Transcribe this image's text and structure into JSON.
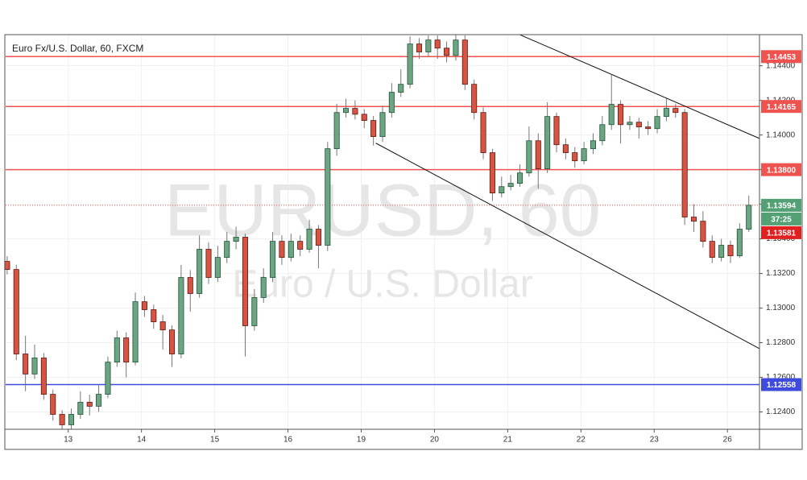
{
  "chart_data": {
    "type": "candlestick",
    "title": "Euro Fx/U.S. Dollar, 60, FXCM",
    "watermark": "EURUSD, 60",
    "watermark_subtitle": "Euro / U.S. Dollar",
    "x": [
      0,
      3,
      6,
      9,
      12,
      15,
      18,
      21,
      24,
      27,
      30,
      33,
      36,
      39,
      42,
      45,
      48,
      51,
      54,
      57,
      60,
      63,
      66,
      69,
      72,
      75,
      78,
      81,
      84,
      87,
      90,
      93,
      96,
      99,
      102,
      105,
      108,
      111,
      114,
      117,
      120,
      123,
      126,
      129,
      132,
      135,
      138,
      141,
      144,
      147,
      150,
      153,
      156,
      159,
      162,
      165,
      168,
      171,
      174,
      177,
      180,
      183,
      186,
      189,
      192,
      195,
      198,
      201,
      204,
      207,
      210,
      213,
      216,
      219,
      222,
      225,
      228,
      231,
      234,
      237,
      240,
      243
    ],
    "open": [
      1.1327,
      1.13223,
      1.12735,
      1.12619,
      1.12712,
      1.12502,
      1.12386,
      1.12326,
      1.12386,
      1.12456,
      1.12433,
      1.12502,
      1.12688,
      1.12828,
      1.12688,
      1.13037,
      1.12991,
      1.12921,
      1.12874,
      1.12735,
      1.13177,
      1.13084,
      1.1334,
      1.13177,
      1.13293,
      1.13386,
      1.1341,
      1.12898,
      1.13061,
      1.13177,
      1.13386,
      1.13293,
      1.13386,
      1.1334,
      1.13456,
      1.13363,
      1.13921,
      1.1413,
      1.14154,
      1.1412,
      1.14084,
      1.13991,
      1.1413,
      1.14247,
      1.14293,
      1.14526,
      1.1448,
      1.14549,
      1.14502,
      1.1446,
      1.14549,
      1.14293,
      1.1413,
      1.13898,
      1.13665,
      1.13702,
      1.13721,
      1.13781,
      1.13967,
      1.13805,
      1.14107,
      1.13944,
      1.13898,
      1.13851,
      1.13921,
      1.13967,
      1.1406,
      1.14177,
      1.1406,
      1.14074,
      1.14047,
      1.14037,
      1.14107,
      1.14154,
      1.1413,
      1.13526,
      1.13502,
      1.13386,
      1.13293,
      1.13363,
      1.13302,
      1.13456
    ],
    "high": [
      1.133,
      1.1325,
      1.1284,
      1.1279,
      1.1274,
      1.1253,
      1.1241,
      1.1242,
      1.1252,
      1.125,
      1.1256,
      1.1272,
      1.1287,
      1.1286,
      1.1309,
      1.1307,
      1.1302,
      1.1296,
      1.129,
      1.1325,
      1.1322,
      1.1342,
      1.1338,
      1.1336,
      1.1344,
      1.1347,
      1.1343,
      1.1311,
      1.1323,
      1.1344,
      1.1342,
      1.1343,
      1.1342,
      1.1351,
      1.1348,
      1.1396,
      1.1418,
      1.1421,
      1.142,
      1.1415,
      1.1411,
      1.1417,
      1.143,
      1.1438,
      1.1457,
      1.1456,
      1.14575,
      1.14575,
      1.1454,
      1.14581,
      1.14575,
      1.1432,
      1.1416,
      1.1392,
      1.1376,
      1.1377,
      1.1383,
      1.1405,
      1.1401,
      1.1419,
      1.1413,
      1.1398,
      1.1393,
      1.1396,
      1.1401,
      1.1411,
      1.1435,
      1.142,
      1.1411,
      1.141,
      1.1408,
      1.1415,
      1.1421,
      1.1418,
      1.1415,
      1.136,
      1.1356,
      1.1342,
      1.134,
      1.1339,
      1.1349,
      1.1365
    ],
    "low": [
      1.13195,
      1.127,
      1.1252,
      1.1259,
      1.1247,
      1.1235,
      1.123,
      1.123,
      1.1236,
      1.1238,
      1.124,
      1.1248,
      1.1266,
      1.126,
      1.1267,
      1.1295,
      1.1288,
      1.1276,
      1.1266,
      1.1271,
      1.1298,
      1.1306,
      1.1314,
      1.1315,
      1.1326,
      1.1334,
      1.1272,
      1.1287,
      1.1303,
      1.1315,
      1.1325,
      1.1327,
      1.133,
      1.1332,
      1.1323,
      1.1333,
      1.1388,
      1.141,
      1.1409,
      1.1404,
      1.1394,
      1.1396,
      1.141,
      1.1422,
      1.1427,
      1.1444,
      1.1445,
      1.1444,
      1.1442,
      1.1443,
      1.1426,
      1.1409,
      1.1386,
      1.1362,
      1.1364,
      1.1368,
      1.137,
      1.1376,
      1.1369,
      1.1378,
      1.139,
      1.1386,
      1.1381,
      1.1383,
      1.1389,
      1.1394,
      1.1403,
      1.1395,
      1.1403,
      1.1398,
      1.14,
      1.1401,
      1.1408,
      1.141,
      1.1348,
      1.1344,
      1.1335,
      1.1326,
      1.1327,
      1.1326,
      1.1329,
      1.1344
    ],
    "close": [
      1.13223,
      1.12735,
      1.12619,
      1.12712,
      1.12502,
      1.12386,
      1.12326,
      1.12386,
      1.12456,
      1.12433,
      1.12502,
      1.12688,
      1.12828,
      1.12688,
      1.13037,
      1.12991,
      1.12921,
      1.12874,
      1.12735,
      1.13177,
      1.13084,
      1.1334,
      1.13177,
      1.13293,
      1.13386,
      1.1341,
      1.12898,
      1.13061,
      1.13177,
      1.13386,
      1.13293,
      1.13386,
      1.1334,
      1.13456,
      1.13363,
      1.13921,
      1.1413,
      1.14154,
      1.1412,
      1.14084,
      1.13991,
      1.1413,
      1.14247,
      1.14293,
      1.14526,
      1.1448,
      1.14549,
      1.14502,
      1.1446,
      1.14549,
      1.14293,
      1.1413,
      1.13898,
      1.13665,
      1.13702,
      1.13721,
      1.13781,
      1.13967,
      1.13805,
      1.14107,
      1.13944,
      1.13898,
      1.13851,
      1.13921,
      1.13967,
      1.1406,
      1.14177,
      1.1406,
      1.14074,
      1.14047,
      1.14037,
      1.14107,
      1.14154,
      1.1413,
      1.13526,
      1.13502,
      1.13386,
      1.13293,
      1.13363,
      1.13302,
      1.13456,
      1.13594
    ],
    "up_color": "#6ba583",
    "down_color": "#d75442",
    "xlim": [
      -0.5,
      246.5
    ],
    "ylim": [
      1.123,
      1.1458
    ],
    "xticks": [
      {
        "value": 20,
        "label": "13"
      },
      {
        "value": 44,
        "label": "14"
      },
      {
        "value": 68,
        "label": "15"
      },
      {
        "value": 92,
        "label": "16"
      },
      {
        "value": 116,
        "label": "19"
      },
      {
        "value": 140,
        "label": "20"
      },
      {
        "value": 164,
        "label": "21"
      },
      {
        "value": 188,
        "label": "22"
      },
      {
        "value": 212,
        "label": "23"
      },
      {
        "value": 236,
        "label": "26"
      }
    ],
    "yticks": [
      {
        "value": 1.124,
        "label": "1.12400"
      },
      {
        "value": 1.126,
        "label": "1.12600"
      },
      {
        "value": 1.128,
        "label": "1.12800"
      },
      {
        "value": 1.13,
        "label": "1.13000"
      },
      {
        "value": 1.132,
        "label": "1.13200"
      },
      {
        "value": 1.134,
        "label": "1.13400"
      },
      {
        "value": 1.136,
        "label": "1.13600"
      },
      {
        "value": 1.138,
        "label": "1.13800"
      },
      {
        "value": 1.14,
        "label": "1.14000"
      },
      {
        "value": 1.142,
        "label": "1.14200"
      },
      {
        "value": 1.144,
        "label": "1.14400"
      }
    ],
    "grid": true,
    "levels": [
      {
        "value": 1.14453,
        "color": "#ef5350"
      },
      {
        "value": 1.14165,
        "color": "#ef5350"
      },
      {
        "value": 1.138,
        "label": "1.13800",
        "color": "#ef5350"
      },
      {
        "value": 1.12558,
        "color": "#3f4bdc"
      }
    ],
    "trendlines": [
      {
        "x": [
          167.8,
          246.4
        ],
        "y": [
          1.14581,
          1.13981
        ]
      },
      {
        "x": [
          120.8,
          246.4
        ],
        "y": [
          1.13953,
          1.12767
        ]
      }
    ],
    "last_price": {
      "value": 1.13594,
      "color": "#53a075",
      "countdown": "37:25"
    },
    "bid_price": {
      "value": 1.13581,
      "color": "#e0211f"
    }
  }
}
